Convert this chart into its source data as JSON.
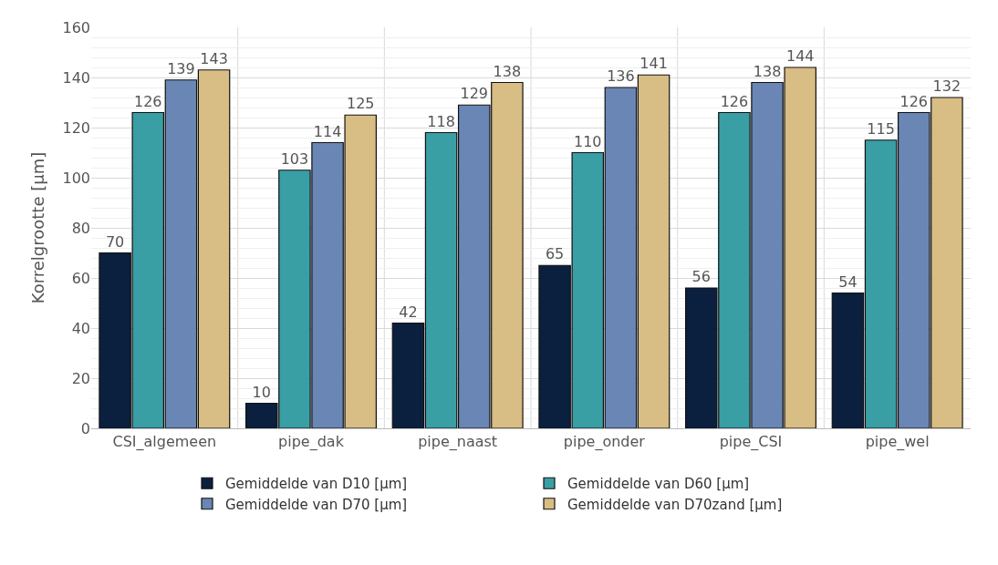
{
  "chart_data": {
    "type": "bar",
    "ylabel": "Korrelgrootte [µm]",
    "categories": [
      "CSI_algemeen",
      "pipe_dak",
      "pipe_naast",
      "pipe_onder",
      "pipe_CSI",
      "pipe_wel"
    ],
    "series": [
      {
        "name": "Gemiddelde van D10 [µm]",
        "color": "#0b1f3f",
        "values": [
          70,
          10,
          42,
          65,
          56,
          54
        ]
      },
      {
        "name": "Gemiddelde van D60 [µm]",
        "color": "#3a9ea5",
        "values": [
          126,
          103,
          118,
          110,
          126,
          115
        ]
      },
      {
        "name": "Gemiddelde van D70 [µm]",
        "color": "#6a86b5",
        "values": [
          139,
          114,
          129,
          136,
          138,
          126
        ]
      },
      {
        "name": "Gemiddelde van D70zand [µm]",
        "color": "#d8bd84",
        "values": [
          143,
          125,
          138,
          141,
          144,
          132
        ]
      }
    ],
    "ylim": [
      0,
      160
    ],
    "yticks": [
      0,
      20,
      40,
      60,
      80,
      100,
      120,
      140,
      160
    ],
    "grid": true,
    "legend": "bottom",
    "data_labels": true
  }
}
